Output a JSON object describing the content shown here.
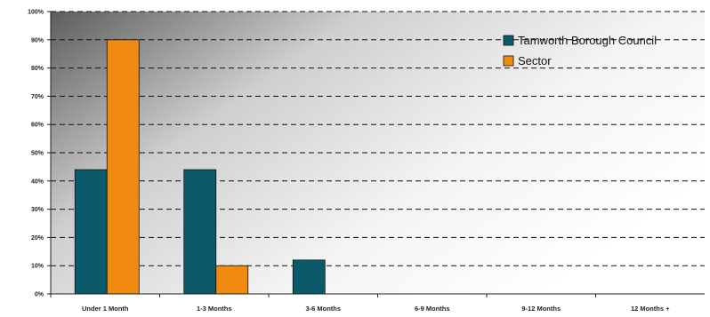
{
  "chart_data": {
    "type": "bar",
    "categories": [
      "Under 1 Month",
      "1-3 Months",
      "3-6 Months",
      "6-9 Months",
      "9-12 Months",
      "12 Months +"
    ],
    "series": [
      {
        "name": "Tamworth Borough Council",
        "color": "#0a5a6b",
        "values": [
          44,
          44,
          12,
          0,
          0,
          0
        ]
      },
      {
        "name": "Sector",
        "color": "#f08a10",
        "values": [
          90,
          10,
          0,
          0,
          0,
          0
        ]
      }
    ],
    "y_ticks": [
      "0%",
      "10%",
      "20%",
      "30%",
      "40%",
      "50%",
      "60%",
      "70%",
      "80%",
      "90%",
      "100%"
    ],
    "ylim": [
      0,
      100
    ],
    "grid": "dashed horizontal",
    "legend_position": "top-right"
  }
}
